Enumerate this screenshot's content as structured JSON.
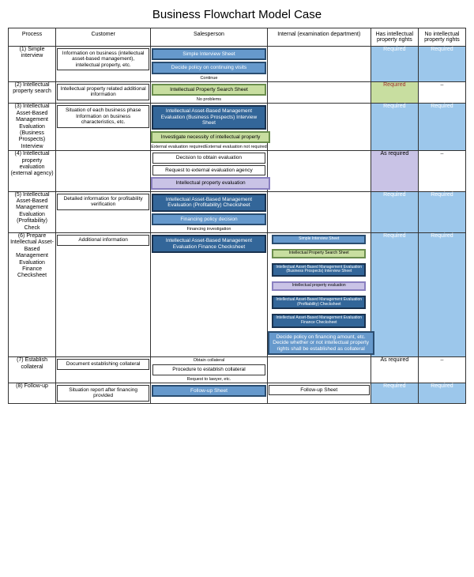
{
  "title": "Business Flowchart Model Case",
  "headers": [
    "Process",
    "Customer",
    "Salesperson",
    "Internal (examination department)",
    "Has intellectual property rights",
    "No intellectual property rights"
  ],
  "colors": {
    "blue_box_bg": "#6699cc",
    "blue_box_border": "#2a4d70",
    "dark_blue_bg": "#336699",
    "dark_blue_border": "#1a3350",
    "green_bg": "#c8dea0",
    "green_border": "#6b8e4e",
    "lav_bg": "#c9c3e6",
    "lav_border": "#8a80c0",
    "req_cell_blue": "#9cc7eb",
    "req_text_red": "#a03030",
    "border": "#333333",
    "background": "#ffffff"
  },
  "req_labels": {
    "required": "Required",
    "as_required": "As required",
    "dash": "–"
  },
  "rows": [
    {
      "id": "r1",
      "process": "(1) Simple interview",
      "customer": "Information on business (intellectual asset-based management), intellectual property, etc.",
      "sales": {
        "a": "Simple Interview Sheet",
        "b": "Decide policy on continuing visits",
        "note": "Continue"
      },
      "internal_empty": true,
      "rights": [
        "required",
        "required"
      ]
    },
    {
      "id": "r2",
      "process": "(2) Intellectual property search",
      "customer": "Intellectual property related additional information",
      "sales": {
        "a": "Intellectual Property Search Sheet",
        "note": "No problems"
      },
      "rights": [
        "required_green",
        "dash"
      ]
    },
    {
      "id": "r3",
      "process": "(3) Intellectual Asset-Based Management Evaluation (Business Prospects) Interview",
      "customer": "Situation of each business phase Information on business characteristics, etc.",
      "sales": {
        "a": "Intellectual Asset-Based Management Evaluation (Business Prospects) Interview Sheet",
        "b": "Investigate necessity of intellectual property",
        "note_l": "External evaluation required",
        "note_r": "External evaluation not required"
      },
      "rights": [
        "required",
        "required"
      ]
    },
    {
      "id": "r4",
      "process": "(4) Intellectual property evaluation (external agency)",
      "customer": "",
      "sales": {
        "a": "Decision to obtain evaluation",
        "b": "Request to external evaluation agency",
        "c": "Intellectual property evaluation"
      },
      "rights": [
        "as_required_lav",
        "dash"
      ]
    },
    {
      "id": "r5",
      "process": "(5) Intellectual Asset-Based Management Evaluation (Profitability) Check",
      "customer": "Detailed information for profitability verification",
      "sales": {
        "a": "Intellectual Asset-Based Management Evaluation (Profitability) Checksheet",
        "b": "Financing policy decision",
        "note": "Financing investigation"
      },
      "rights": [
        "required",
        "required"
      ]
    },
    {
      "id": "r6",
      "process": "(6) Prepare Intellectual Asset-Based Management Evaluation Finance Checksheet",
      "customer": "Additional information",
      "sales": {
        "a": "Intellectual Asset-Based Management Evaluation Finance Checksheet"
      },
      "internal": {
        "mini": [
          {
            "t": "Simple Interview Sheet",
            "cls": "box-blue"
          },
          {
            "t": "Intellectual Property Search Sheet",
            "cls": "box-green"
          },
          {
            "t": "Intellectual Asset-Based Management Evaluation (Business Prospects) Interview Sheet",
            "cls": "box-blue-dk"
          },
          {
            "t": "Intellectual property evaluation",
            "cls": "box-lav"
          },
          {
            "t": "Intellectual Asset-Based Management Evaluation (Profitability) Checksheet",
            "cls": "box-blue-dk"
          },
          {
            "t": "Intellectual Asset-Based Management Evaluation Finance Checksheet",
            "cls": "box-blue-dk"
          }
        ],
        "decision": "Decide policy on financing amount, etc. Decide whether or not intellectual property rights shall be established as collateral"
      },
      "rights": [
        "required",
        "required"
      ]
    },
    {
      "id": "r7",
      "process": "(7) Establish collateral",
      "customer": "Document establishing collateral",
      "sales": {
        "note_top": "Obtain collateral",
        "a": "Procedure to establish collateral",
        "note_bot": "Request to lawyer, etc."
      },
      "rights": [
        "as_required",
        "dash"
      ]
    },
    {
      "id": "r8",
      "process": "(8) Follow-up",
      "customer": "Situation report after financing provided",
      "sales": {
        "a": "Follow-up Sheet"
      },
      "internal": {
        "a": "Follow-up Sheet"
      },
      "rights": [
        "required",
        "required"
      ]
    }
  ]
}
